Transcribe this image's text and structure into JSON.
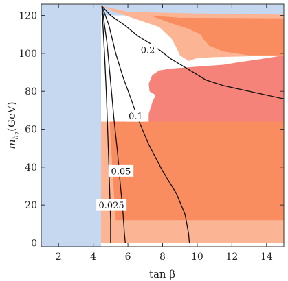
{
  "chart_data": {
    "type": "contour",
    "xlabel": "tan β",
    "ylabel_main": "m",
    "ylabel_sub": "h",
    "ylabel_subsub": "2",
    "ylabel_unit": "(GeV)",
    "xlim": [
      1,
      15
    ],
    "ylim": [
      -2,
      126
    ],
    "xticks": [
      2,
      4,
      6,
      8,
      10,
      12,
      14
    ],
    "yticks": [
      0,
      20,
      40,
      60,
      80,
      100,
      120
    ],
    "regions": [
      {
        "name": "excluded-blue-lowtanb",
        "color": "#c5d8f0",
        "points": [
          [
            1,
            -2
          ],
          [
            4.45,
            -2
          ],
          [
            4.45,
            126
          ],
          [
            1,
            126
          ]
        ]
      },
      {
        "name": "excluded-blue-top",
        "color": "#c5d8f0",
        "points": [
          [
            4.45,
            120
          ],
          [
            15,
            120
          ],
          [
            15,
            126
          ],
          [
            4.45,
            126
          ]
        ]
      },
      {
        "name": "light-orange-lower",
        "color": "#fbb595",
        "points": [
          [
            4.45,
            0
          ],
          [
            15,
            0
          ],
          [
            15,
            64
          ],
          [
            4.45,
            64
          ]
        ]
      },
      {
        "name": "mid-orange-lower",
        "color": "#f98d60",
        "points": [
          [
            5.3,
            12
          ],
          [
            15,
            12
          ],
          [
            15,
            64
          ],
          [
            4.95,
            64
          ],
          [
            5.0,
            55
          ],
          [
            5.1,
            40
          ],
          [
            5.2,
            25
          ]
        ]
      },
      {
        "name": "light-orange-upper",
        "color": "#fbb595",
        "points": [
          [
            4.5,
            125
          ],
          [
            6,
            122
          ],
          [
            10,
            121
          ],
          [
            15,
            120.5
          ],
          [
            15,
            99
          ],
          [
            13,
            98.5
          ],
          [
            11,
            98
          ],
          [
            10,
            97.5
          ],
          [
            9.5,
            96
          ],
          [
            9,
            99
          ],
          [
            8.8,
            103
          ],
          [
            8.5,
            108
          ],
          [
            7.8,
            114
          ],
          [
            6.5,
            118
          ],
          [
            5.2,
            122
          ]
        ]
      },
      {
        "name": "mid-orange-upper",
        "color": "#f98d60",
        "points": [
          [
            7.3,
            120
          ],
          [
            9,
            118.8
          ],
          [
            15,
            118.5
          ],
          [
            15,
            99
          ],
          [
            13,
            99
          ],
          [
            11.5,
            101
          ],
          [
            10.7,
            104
          ],
          [
            10.4,
            107
          ],
          [
            10.2,
            110
          ],
          [
            9.5,
            113
          ],
          [
            8.5,
            116
          ]
        ]
      },
      {
        "name": "red-band",
        "color": "#f6837a",
        "points": [
          [
            7.2,
            64
          ],
          [
            15,
            64
          ],
          [
            15,
            99
          ],
          [
            13.5,
            96.8
          ],
          [
            12.5,
            95.5
          ],
          [
            11.5,
            94
          ],
          [
            10,
            93
          ],
          [
            8.5,
            92
          ],
          [
            7.8,
            91
          ],
          [
            7.4,
            88.5
          ],
          [
            7.2,
            84
          ],
          [
            7.25,
            80
          ],
          [
            7.6,
            78
          ],
          [
            7.4,
            74
          ],
          [
            7.2,
            68
          ]
        ]
      }
    ],
    "contours": [
      {
        "label": "0.2",
        "label_at": [
          7.15,
          102
        ],
        "points": [
          [
            4.5,
            125
          ],
          [
            5.0,
            120
          ],
          [
            5.8,
            115
          ],
          [
            6.6,
            109
          ],
          [
            7.5,
            104
          ],
          [
            8.5,
            97
          ],
          [
            9.6,
            91
          ],
          [
            10.5,
            86
          ],
          [
            11.5,
            83
          ],
          [
            13,
            80
          ],
          [
            15,
            76
          ]
        ]
      },
      {
        "label": "0.1",
        "label_at": [
          6.45,
          67
        ],
        "points": [
          [
            4.5,
            125
          ],
          [
            4.9,
            115
          ],
          [
            5.3,
            100
          ],
          [
            5.7,
            88
          ],
          [
            6.1,
            78
          ],
          [
            6.6,
            65
          ],
          [
            7.2,
            52
          ],
          [
            8,
            38
          ],
          [
            8.8,
            26
          ],
          [
            9.3,
            15
          ],
          [
            9.5,
            5
          ],
          [
            9.55,
            0
          ]
        ]
      },
      {
        "label": "0.05",
        "label_at": [
          5.6,
          38
        ],
        "points": [
          [
            4.5,
            125
          ],
          [
            4.8,
            105
          ],
          [
            5.0,
            85
          ],
          [
            5.2,
            65
          ],
          [
            5.4,
            48
          ],
          [
            5.55,
            32
          ],
          [
            5.7,
            18
          ],
          [
            5.8,
            5
          ],
          [
            5.85,
            0
          ]
        ]
      },
      {
        "label": "0.025",
        "label_at": [
          5.05,
          20
        ],
        "points": [
          [
            4.5,
            125
          ],
          [
            4.65,
            100
          ],
          [
            4.75,
            80
          ],
          [
            4.83,
            60
          ],
          [
            4.9,
            42
          ],
          [
            4.95,
            27
          ],
          [
            5.0,
            12
          ],
          [
            5.0,
            0
          ]
        ]
      }
    ]
  }
}
